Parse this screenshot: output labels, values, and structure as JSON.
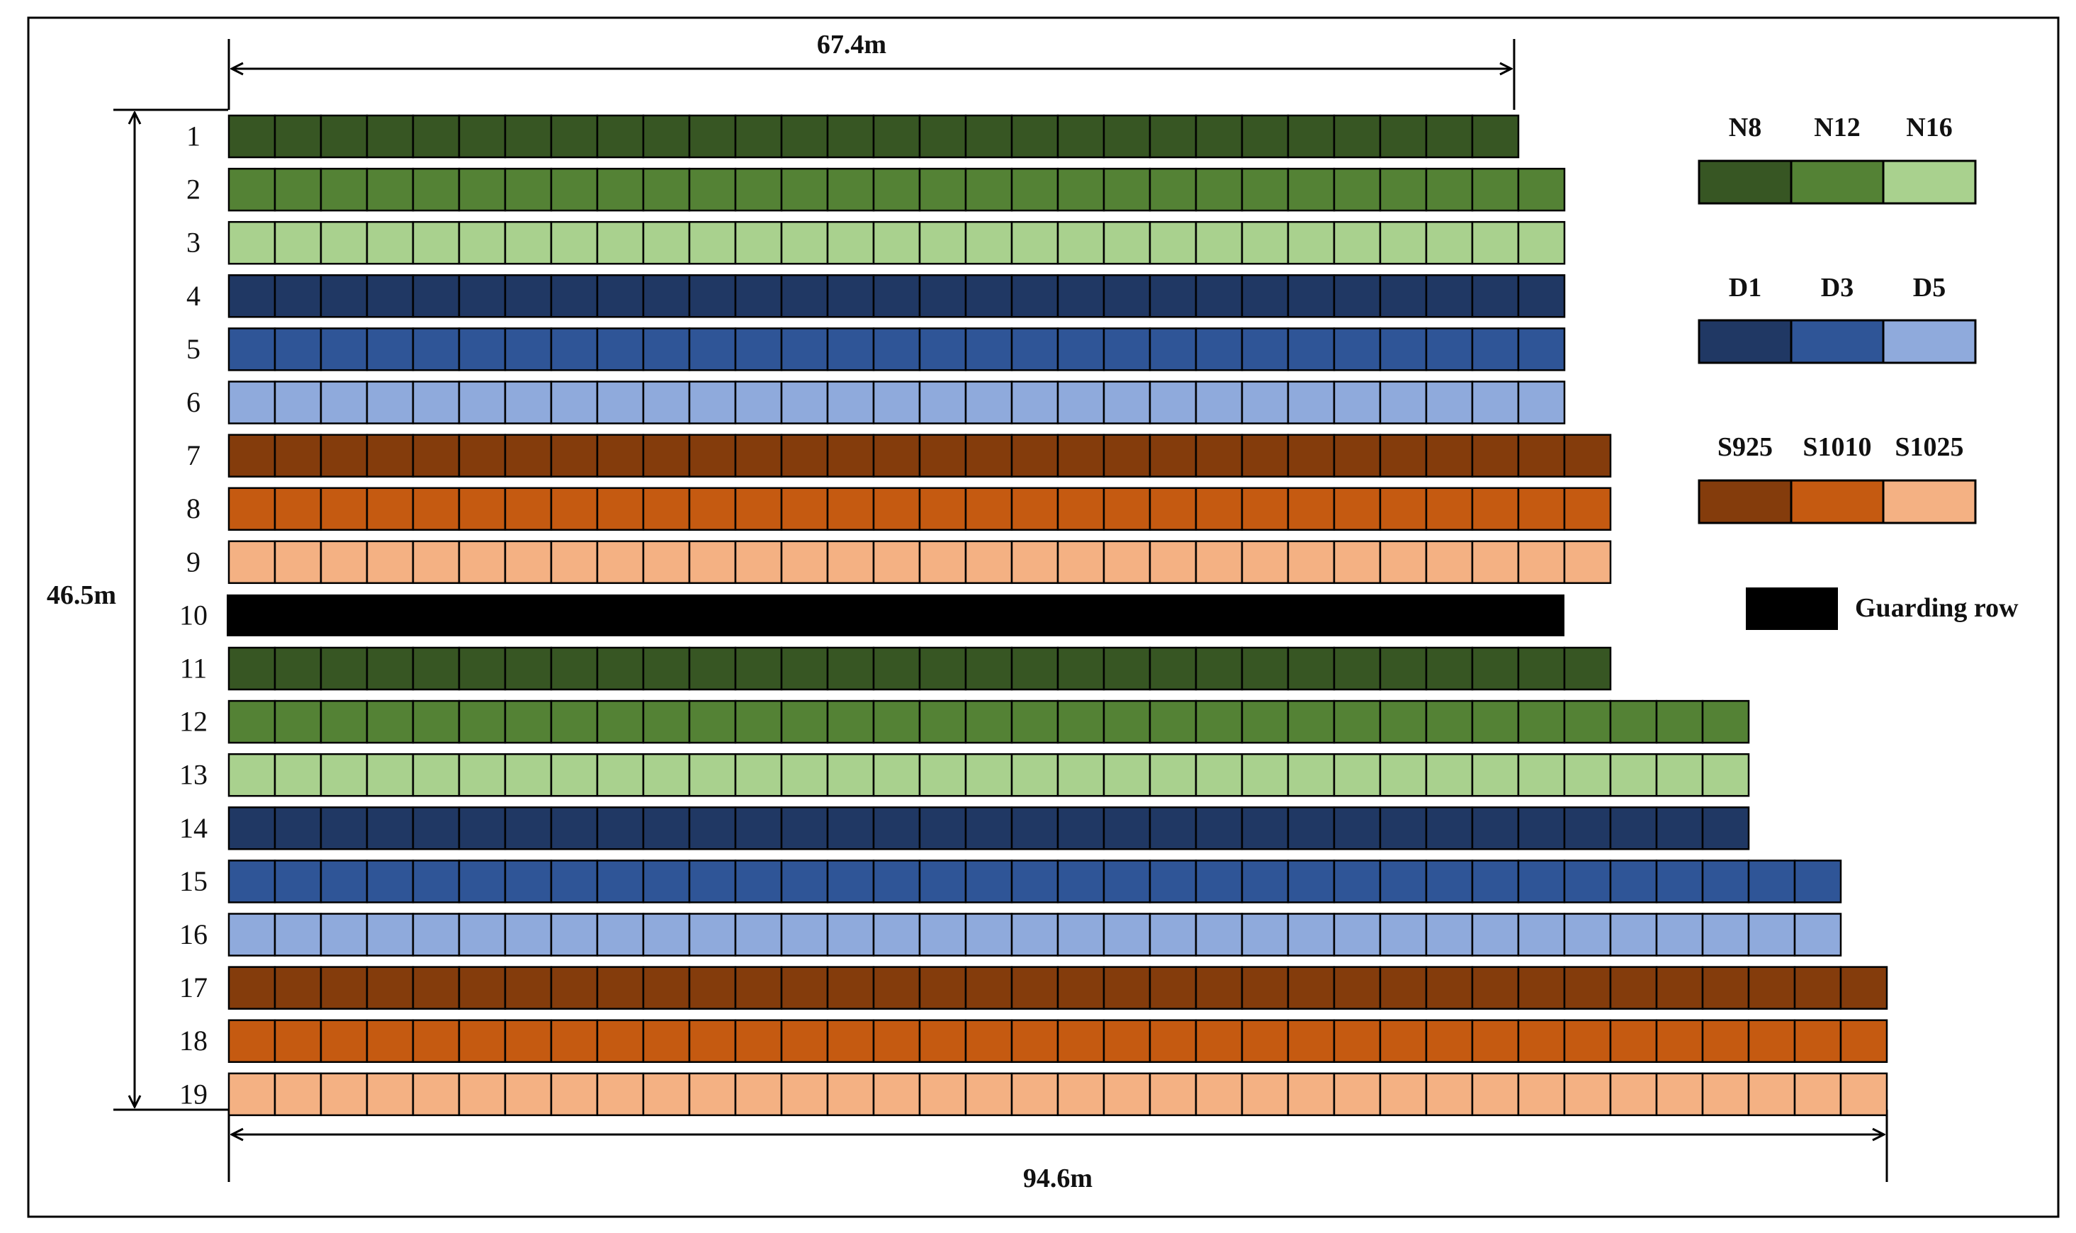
{
  "dimensions": {
    "top_width": "67.4m",
    "bottom_width": "94.6m",
    "height": "46.5m"
  },
  "rows": [
    {
      "label": "1",
      "treatment": "N8",
      "cells": 28
    },
    {
      "label": "2",
      "treatment": "N12",
      "cells": 29
    },
    {
      "label": "3",
      "treatment": "N16",
      "cells": 29
    },
    {
      "label": "4",
      "treatment": "D1",
      "cells": 29
    },
    {
      "label": "5",
      "treatment": "D3",
      "cells": 29
    },
    {
      "label": "6",
      "treatment": "D5",
      "cells": 29
    },
    {
      "label": "7",
      "treatment": "S925",
      "cells": 30
    },
    {
      "label": "8",
      "treatment": "S1010",
      "cells": 30
    },
    {
      "label": "9",
      "treatment": "S1025",
      "cells": 30
    },
    {
      "label": "10",
      "treatment": "guard",
      "cells": 29
    },
    {
      "label": "11",
      "treatment": "N8",
      "cells": 30
    },
    {
      "label": "12",
      "treatment": "N12",
      "cells": 33
    },
    {
      "label": "13",
      "treatment": "N16",
      "cells": 33
    },
    {
      "label": "14",
      "treatment": "D1",
      "cells": 33
    },
    {
      "label": "15",
      "treatment": "D3",
      "cells": 35
    },
    {
      "label": "16",
      "treatment": "D5",
      "cells": 35
    },
    {
      "label": "17",
      "treatment": "S925",
      "cells": 36
    },
    {
      "label": "18",
      "treatment": "S1010",
      "cells": 36
    },
    {
      "label": "19",
      "treatment": "S1025",
      "cells": 36
    }
  ],
  "colors": {
    "N8": "#375623",
    "N12": "#548235",
    "N16": "#a9d18e",
    "D1": "#203864",
    "D3": "#2f5597",
    "D5": "#8faadc",
    "D5_alt": "#9dc3e6",
    "S925": "#843c0c",
    "S1010": "#c55a11",
    "S1025": "#f4b183",
    "guard": "#000000"
  },
  "legend": {
    "groups": [
      {
        "labels": [
          "N8",
          "N12",
          "N16"
        ]
      },
      {
        "labels": [
          "D1",
          "D3",
          "D5"
        ]
      },
      {
        "labels": [
          "S925",
          "S1010",
          "S1025"
        ]
      }
    ],
    "guard_label": "Guarding row"
  }
}
